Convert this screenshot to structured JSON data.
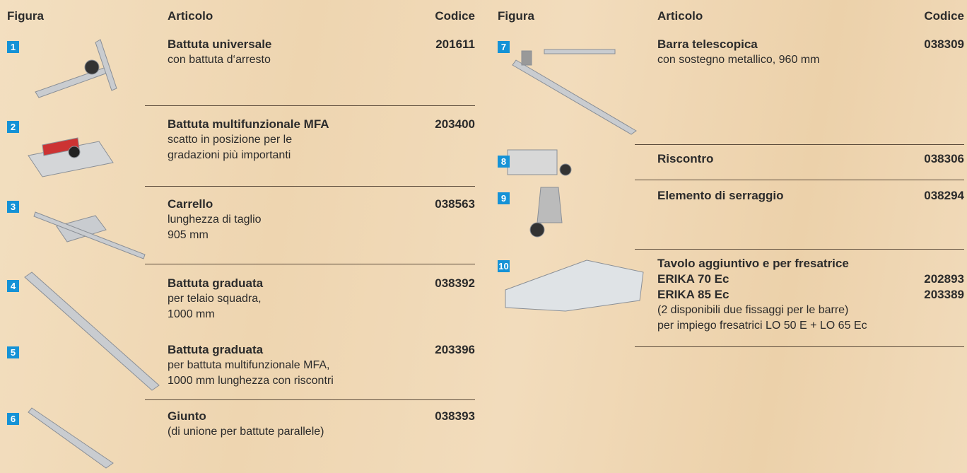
{
  "left": {
    "headers": [
      "Figura",
      "Articolo",
      "Codice"
    ],
    "rows": [
      {
        "number": "1",
        "title": "Battuta universale",
        "description": [
          "con battuta d‘arresto"
        ],
        "code": "201611"
      },
      {
        "number": "2",
        "title": "Battuta multifunzionale MFA",
        "description": [
          "scatto in posizione per le",
          "gradazioni più importanti"
        ],
        "code": "203400"
      },
      {
        "number": "3",
        "title": "Carrello",
        "description": [
          "lunghezza di taglio",
          "905 mm"
        ],
        "code": "038563"
      },
      {
        "number": "4",
        "title": "Battuta graduata",
        "description": [
          "per telaio squadra,",
          "1000 mm"
        ],
        "code": "038392"
      },
      {
        "number": "5",
        "title": "Battuta graduata",
        "description": [
          "per battuta multifunzionale MFA,",
          "1000 mm lunghezza con riscontri"
        ],
        "code": "203396"
      },
      {
        "number": "6",
        "title": "Giunto",
        "description": [
          "(di unione per battute parallele)"
        ],
        "code": "038393"
      }
    ]
  },
  "right": {
    "headers": [
      "Figura",
      "Articolo",
      "Codice"
    ],
    "rows": [
      {
        "number": "7",
        "title": "Barra telescopica",
        "description": [
          "con sostegno metallico, 960 mm"
        ],
        "code": "038309"
      },
      {
        "number": "8",
        "title": "Riscontro",
        "description": [],
        "code": "038306"
      },
      {
        "number": "9",
        "title": "Elemento di serraggio",
        "description": [],
        "code": "038294"
      },
      {
        "number": "10",
        "title": "Tavolo aggiuntivo e per fresatrice",
        "items": [
          {
            "name": "ERIKA 70 Ec",
            "code": "202893"
          },
          {
            "name": "ERIKA 85 Ec",
            "code": "203389"
          }
        ],
        "description": [
          "(2 disponibili due fissaggi per le barre)",
          "per impiego fresatrici LO 50 E + LO 65 Ec"
        ]
      }
    ]
  }
}
